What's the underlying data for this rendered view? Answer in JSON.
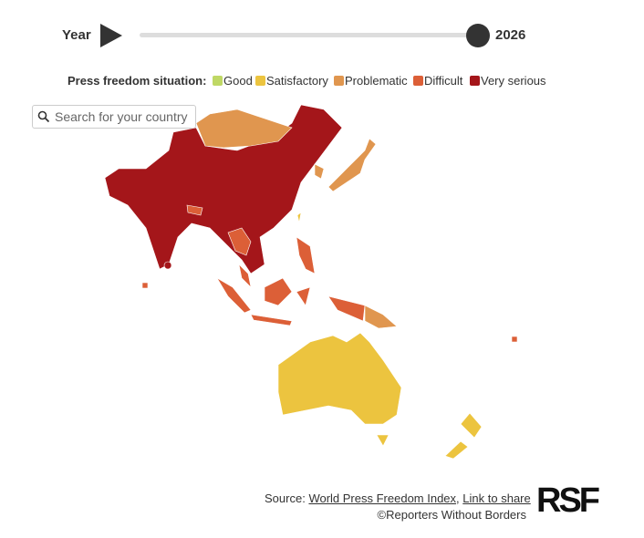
{
  "controls": {
    "year_label": "Year",
    "year": "2026"
  },
  "legend": {
    "title": "Press freedom situation:",
    "items": [
      {
        "label": "Good",
        "color": "#bfd865"
      },
      {
        "label": "Satisfactory",
        "color": "#ecc43f"
      },
      {
        "label": "Problematic",
        "color": "#e0964f"
      },
      {
        "label": "Difficult",
        "color": "#dc5f37"
      },
      {
        "label": "Very serious",
        "color": "#a4161a"
      }
    ]
  },
  "search": {
    "placeholder": "Search for your country"
  },
  "footer": {
    "source_prefix": "Source:",
    "source_link": "World Press Freedom Index",
    "separator": ",",
    "share_link": "Link to share",
    "copyright": "©Reporters Without Borders",
    "logo": "RSF"
  }
}
